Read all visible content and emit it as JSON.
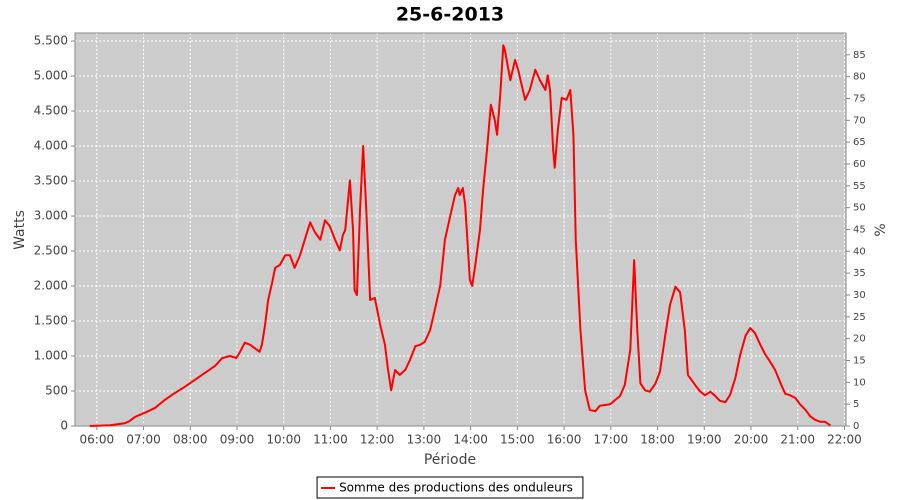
{
  "chart_data": {
    "type": "line",
    "title": "25-6-2013",
    "xlabel": "Période",
    "ylabel": "Watts",
    "y2label": "%",
    "x": [
      "05:51",
      "06:17",
      "06:36",
      "06:42",
      "06:49",
      "07:02",
      "07:15",
      "07:27",
      "07:40",
      "07:53",
      "08:06",
      "08:19",
      "08:32",
      "08:41",
      "08:51",
      "08:59",
      "09:04",
      "09:10",
      "09:17",
      "09:23",
      "09:29",
      "09:32",
      "09:36",
      "09:40",
      "09:45",
      "09:49",
      "09:55",
      "10:02",
      "10:08",
      "10:14",
      "10:21",
      "10:27",
      "10:34",
      "10:40",
      "10:47",
      "10:53",
      "10:59",
      "11:06",
      "11:12",
      "11:16",
      "11:19",
      "11:22",
      "11:25",
      "11:29",
      "11:31",
      "11:34",
      "11:38",
      "11:42",
      "11:46",
      "11:51",
      "11:57",
      "12:04",
      "12:10",
      "12:14",
      "12:18",
      "12:23",
      "12:29",
      "12:36",
      "12:42",
      "12:49",
      "12:55",
      "13:01",
      "13:08",
      "13:14",
      "13:21",
      "13:27",
      "13:34",
      "13:40",
      "13:44",
      "13:46",
      "13:50",
      "13:53",
      "13:59",
      "14:02",
      "14:06",
      "14:12",
      "14:16",
      "14:21",
      "14:26",
      "14:31",
      "14:34",
      "14:38",
      "14:42",
      "14:44",
      "14:51",
      "14:57",
      "15:01",
      "15:10",
      "15:16",
      "15:23",
      "15:29",
      "15:36",
      "15:39",
      "15:42",
      "15:46",
      "15:48",
      "15:52",
      "15:57",
      "16:03",
      "16:08",
      "16:12",
      "16:15",
      "16:21",
      "16:27",
      "16:33",
      "16:40",
      "16:46",
      "16:59",
      "17:12",
      "17:18",
      "17:25",
      "17:30",
      "17:34",
      "17:38",
      "17:44",
      "17:50",
      "17:57",
      "18:03",
      "18:10",
      "18:16",
      "18:23",
      "18:29",
      "18:35",
      "18:39",
      "18:48",
      "18:55",
      "19:01",
      "19:08",
      "19:14",
      "19:20",
      "19:27",
      "19:33",
      "19:40",
      "19:46",
      "19:53",
      "19:59",
      "20:05",
      "20:12",
      "20:18",
      "20:25",
      "20:31",
      "20:38",
      "20:44",
      "20:50",
      "20:57",
      "21:03",
      "21:10",
      "21:16",
      "21:22",
      "21:29",
      "21:35",
      "21:42"
    ],
    "series": [
      {
        "name": "Somme des productions des onduleurs",
        "color": "#ff0000",
        "values": [
          0,
          10,
          40,
          70,
          130,
          190,
          260,
          370,
          470,
          560,
          660,
          760,
          860,
          970,
          1000,
          970,
          1060,
          1190,
          1160,
          1110,
          1060,
          1160,
          1440,
          1800,
          2040,
          2260,
          2300,
          2440,
          2440,
          2260,
          2440,
          2660,
          2910,
          2770,
          2660,
          2940,
          2860,
          2660,
          2510,
          2730,
          2800,
          3160,
          3510,
          2800,
          1940,
          1870,
          3090,
          4000,
          3090,
          1800,
          1830,
          1440,
          1160,
          800,
          510,
          800,
          730,
          800,
          940,
          1140,
          1160,
          1200,
          1370,
          1660,
          2010,
          2660,
          3010,
          3300,
          3400,
          3300,
          3400,
          3160,
          2090,
          2000,
          2300,
          2800,
          3370,
          3940,
          4590,
          4370,
          4160,
          4730,
          5440,
          5370,
          4940,
          5230,
          5090,
          4660,
          4800,
          5090,
          4940,
          4800,
          5010,
          4800,
          3940,
          3690,
          4230,
          4690,
          4660,
          4800,
          4160,
          2660,
          1370,
          510,
          230,
          210,
          290,
          310,
          430,
          590,
          1090,
          2370,
          1370,
          610,
          510,
          490,
          600,
          770,
          1300,
          1730,
          1990,
          1910,
          1370,
          730,
          590,
          490,
          440,
          490,
          430,
          360,
          340,
          440,
          690,
          1010,
          1290,
          1400,
          1330,
          1160,
          1030,
          910,
          800,
          610,
          460,
          440,
          400,
          310,
          230,
          140,
          90,
          60,
          60,
          10
        ]
      }
    ],
    "xlim": [
      "05:32",
      "22:02"
    ],
    "xticks": [
      "06:00",
      "07:00",
      "08:00",
      "09:00",
      "10:00",
      "11:00",
      "12:00",
      "13:00",
      "14:00",
      "15:00",
      "16:00",
      "17:00",
      "18:00",
      "19:00",
      "20:00",
      "21:00",
      "22:00"
    ],
    "ylim": [
      0,
      5615
    ],
    "yticks": [
      0,
      500,
      {
        "value": 1000,
        "label": "1.000"
      },
      {
        "value": 1500,
        "label": "1.500"
      },
      {
        "value": 2000,
        "label": "2.000"
      },
      {
        "value": 2500,
        "label": "2.500"
      },
      {
        "value": 3000,
        "label": "3.000"
      },
      {
        "value": 3500,
        "label": "3.500"
      },
      {
        "value": 4000,
        "label": "4.000"
      },
      {
        "value": 4500,
        "label": "4.500"
      },
      {
        "value": 5000,
        "label": "5.000"
      },
      {
        "value": 5500,
        "label": "5.500"
      }
    ],
    "y2lim": [
      0,
      90
    ],
    "y2ticks": [
      0,
      5,
      10,
      15,
      20,
      25,
      30,
      35,
      40,
      45,
      50,
      55,
      60,
      65,
      70,
      75,
      80,
      85
    ],
    "grid": true,
    "legend": "bottom",
    "plot_background": "#cccccc"
  }
}
